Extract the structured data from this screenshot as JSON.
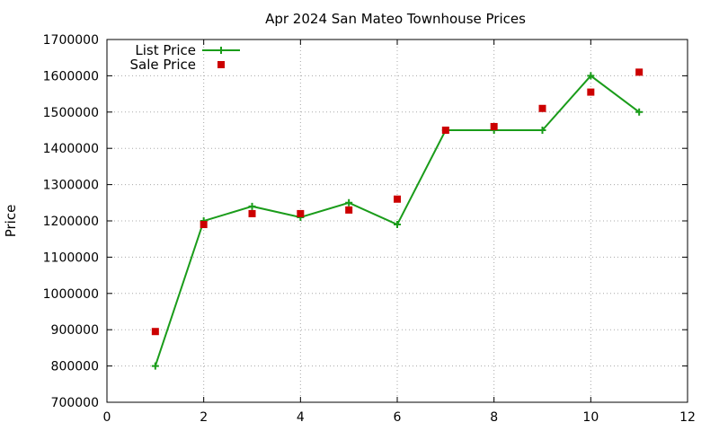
{
  "chart_data": {
    "type": "line",
    "title": "Apr 2024 San Mateo Townhouse Prices",
    "xlabel": "",
    "ylabel": "Price",
    "xlim": [
      0,
      12
    ],
    "ylim": [
      700000,
      1700000
    ],
    "xticks": [
      0,
      2,
      4,
      6,
      8,
      10,
      12
    ],
    "yticks": [
      700000,
      800000,
      900000,
      1000000,
      1100000,
      1200000,
      1300000,
      1400000,
      1500000,
      1600000,
      1700000
    ],
    "grid": true,
    "legend_position": "top-left",
    "series": [
      {
        "name": "List Price",
        "style": "line-points",
        "color": "#1a9c1a",
        "x": [
          1,
          2,
          3,
          4,
          5,
          6,
          7,
          8,
          9,
          10,
          11
        ],
        "y": [
          800000,
          1200000,
          1240000,
          1210000,
          1250000,
          1190000,
          1450000,
          1450000,
          1450000,
          1600000,
          1500000
        ]
      },
      {
        "name": "Sale Price",
        "style": "points",
        "color": "#cc0000",
        "x": [
          1,
          2,
          3,
          4,
          5,
          6,
          7,
          8,
          9,
          10,
          11
        ],
        "y": [
          895000,
          1190000,
          1220000,
          1220000,
          1230000,
          1260000,
          1450000,
          1460000,
          1510000,
          1555000,
          1610000
        ]
      }
    ]
  }
}
